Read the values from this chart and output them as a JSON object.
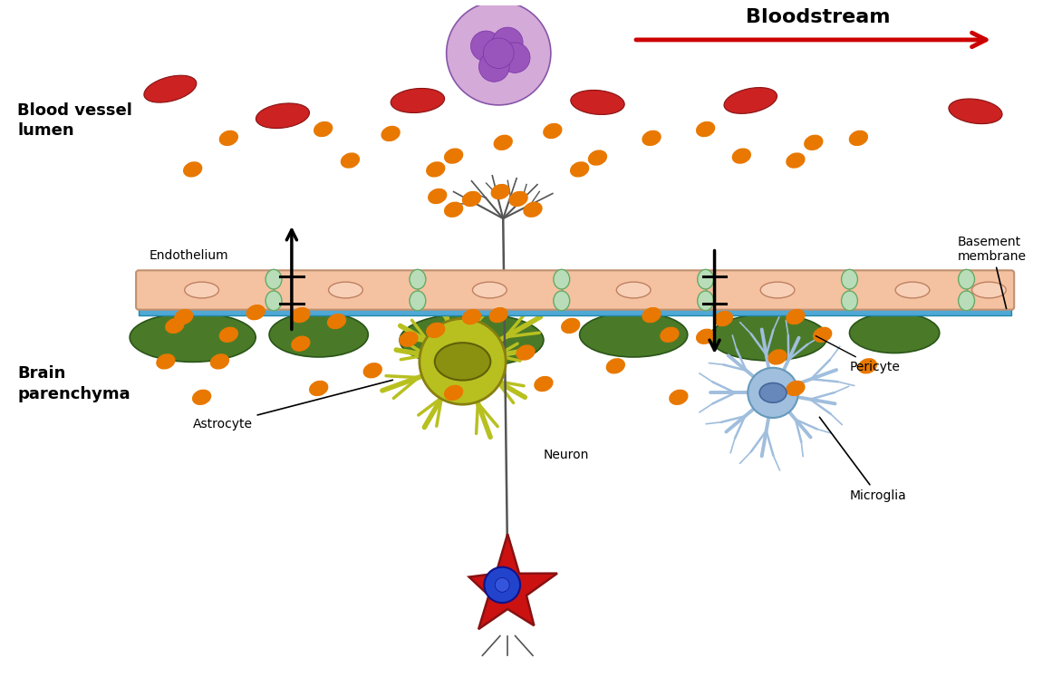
{
  "bloodstream_label": "Bloodstream",
  "bloodstream_arrow_color": "#cc0000",
  "blood_vessel_lumen_label": "Blood vessel\nlumen",
  "brain_parenchyma_label": "Brain\nparenchyma",
  "endothelium_label": "Endothelium",
  "basement_membrane_label": "Basement\nmembrane",
  "pericyte_label": "Pericyte",
  "astrocyte_label": "Astrocyte",
  "microglia_label": "Microglia",
  "neuron_label": "Neuron",
  "endothelium_color": "#f4c2a1",
  "basement_membrane_color": "#4fa8d5",
  "pericyte_color": "#4a7a28",
  "astrocyte_color": "#b8c020",
  "microglia_color": "#a0bedd",
  "neuron_body_color": "#cc1111",
  "rbc_color": "#cc2222",
  "wbc_fill": "#d4aad8",
  "wbc_nucleus": "#aa66bb",
  "exosome_color": "#e87800",
  "background_color": "#ffffff",
  "tight_junction_color": "#b8ddb8"
}
